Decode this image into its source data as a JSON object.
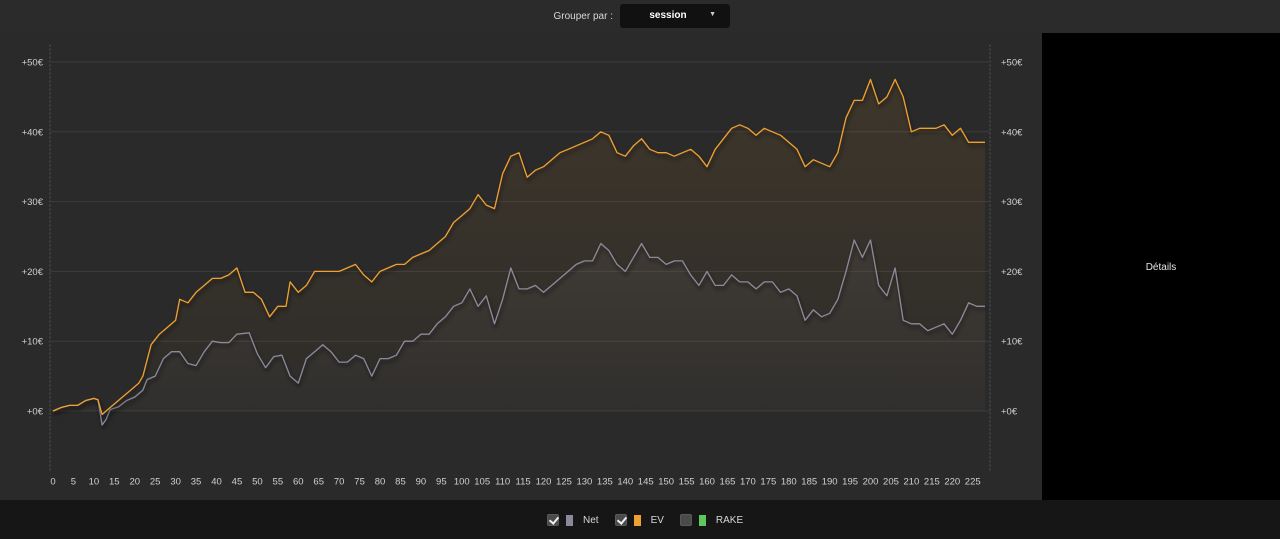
{
  "group_by": {
    "label": "Grouper par :",
    "selected": "session"
  },
  "details": {
    "label": "Détails"
  },
  "legend": [
    {
      "label": "Net",
      "checked": true,
      "color": "#8a8a9a"
    },
    {
      "label": "EV",
      "checked": true,
      "color": "#f0a030"
    },
    {
      "label": "RAKE",
      "checked": false,
      "color": "#5cc85c"
    }
  ],
  "chart_data": {
    "type": "line",
    "title": "",
    "xlabel": "",
    "ylabel": "",
    "xlim": [
      0,
      228
    ],
    "ylim": [
      -6.8,
      52.5
    ],
    "x_ticks": [
      0,
      5,
      10,
      15,
      20,
      25,
      30,
      35,
      40,
      45,
      50,
      55,
      60,
      65,
      70,
      75,
      80,
      85,
      90,
      95,
      100,
      105,
      110,
      115,
      120,
      125,
      130,
      135,
      140,
      145,
      150,
      155,
      160,
      165,
      170,
      175,
      180,
      185,
      190,
      195,
      200,
      205,
      210,
      215,
      220,
      225
    ],
    "y_ticks": [
      0,
      10,
      20,
      30,
      40,
      50
    ],
    "y_tick_labels": [
      "+0€",
      "+10€",
      "+20€",
      "+30€",
      "+40€",
      "+50€"
    ],
    "grid": true,
    "series": [
      {
        "name": "Net",
        "color": "#8a8a9a",
        "points": [
          [
            0,
            0
          ],
          [
            2,
            0.5
          ],
          [
            4,
            0.8
          ],
          [
            6,
            0.8
          ],
          [
            8,
            1.5
          ],
          [
            10,
            1.8
          ],
          [
            11,
            1.6
          ],
          [
            12,
            -2
          ],
          [
            13,
            -1.2
          ],
          [
            14,
            0.2
          ],
          [
            16,
            0.6
          ],
          [
            18,
            1.5
          ],
          [
            20,
            2
          ],
          [
            22,
            3
          ],
          [
            23,
            4.5
          ],
          [
            25,
            5
          ],
          [
            27,
            7.5
          ],
          [
            29,
            8.5
          ],
          [
            31,
            8.5
          ],
          [
            33,
            6.8
          ],
          [
            35,
            6.5
          ],
          [
            37,
            8.5
          ],
          [
            39,
            10
          ],
          [
            41,
            9.8
          ],
          [
            43,
            9.8
          ],
          [
            45,
            11
          ],
          [
            48,
            11.2
          ],
          [
            50,
            8.2
          ],
          [
            52,
            6.2
          ],
          [
            54,
            7.8
          ],
          [
            56,
            8
          ],
          [
            58,
            5
          ],
          [
            60,
            4
          ],
          [
            62,
            7.5
          ],
          [
            64,
            8.5
          ],
          [
            66,
            9.5
          ],
          [
            68,
            8.5
          ],
          [
            70,
            7
          ],
          [
            72,
            7
          ],
          [
            74,
            8
          ],
          [
            76,
            7.5
          ],
          [
            78,
            5
          ],
          [
            80,
            7.5
          ],
          [
            82,
            7.5
          ],
          [
            84,
            8
          ],
          [
            86,
            10
          ],
          [
            88,
            10
          ],
          [
            90,
            11
          ],
          [
            92,
            11
          ],
          [
            94,
            12.5
          ],
          [
            96,
            13.5
          ],
          [
            98,
            15
          ],
          [
            100,
            15.5
          ],
          [
            102,
            17.5
          ],
          [
            104,
            15
          ],
          [
            106,
            16.5
          ],
          [
            108,
            12.5
          ],
          [
            110,
            16
          ],
          [
            112,
            20.5
          ],
          [
            114,
            17.5
          ],
          [
            116,
            17.5
          ],
          [
            118,
            18
          ],
          [
            120,
            17
          ],
          [
            122,
            18
          ],
          [
            124,
            19
          ],
          [
            126,
            20
          ],
          [
            128,
            21
          ],
          [
            130,
            21.5
          ],
          [
            132,
            21.5
          ],
          [
            134,
            24
          ],
          [
            136,
            23
          ],
          [
            138,
            21
          ],
          [
            140,
            20
          ],
          [
            142,
            22
          ],
          [
            144,
            24
          ],
          [
            146,
            22
          ],
          [
            148,
            22
          ],
          [
            150,
            21
          ],
          [
            152,
            21.5
          ],
          [
            154,
            21.5
          ],
          [
            156,
            19.5
          ],
          [
            158,
            18
          ],
          [
            160,
            20
          ],
          [
            162,
            18
          ],
          [
            164,
            18
          ],
          [
            166,
            19.5
          ],
          [
            168,
            18.5
          ],
          [
            170,
            18.5
          ],
          [
            172,
            17.5
          ],
          [
            174,
            18.5
          ],
          [
            176,
            18.5
          ],
          [
            178,
            17
          ],
          [
            180,
            17.5
          ],
          [
            182,
            16.5
          ],
          [
            184,
            13
          ],
          [
            186,
            14.5
          ],
          [
            188,
            13.5
          ],
          [
            190,
            14
          ],
          [
            192,
            16
          ],
          [
            194,
            20
          ],
          [
            196,
            24.5
          ],
          [
            198,
            22
          ],
          [
            200,
            24.5
          ],
          [
            202,
            18
          ],
          [
            204,
            16.5
          ],
          [
            206,
            20.5
          ],
          [
            208,
            13
          ],
          [
            210,
            12.5
          ],
          [
            212,
            12.5
          ],
          [
            214,
            11.5
          ],
          [
            216,
            12
          ],
          [
            218,
            12.5
          ],
          [
            220,
            11
          ],
          [
            222,
            13
          ],
          [
            224,
            15.5
          ],
          [
            226,
            15
          ],
          [
            228,
            15
          ]
        ]
      },
      {
        "name": "EV",
        "color": "#f0a030",
        "points": [
          [
            0,
            0
          ],
          [
            2,
            0.5
          ],
          [
            4,
            0.8
          ],
          [
            6,
            0.8
          ],
          [
            8,
            1.5
          ],
          [
            10,
            1.8
          ],
          [
            11,
            1.6
          ],
          [
            12,
            -0.5
          ],
          [
            13,
            0
          ],
          [
            15,
            1
          ],
          [
            17,
            2
          ],
          [
            19,
            3
          ],
          [
            21,
            4
          ],
          [
            22,
            5
          ],
          [
            24,
            9.5
          ],
          [
            26,
            11
          ],
          [
            28,
            12
          ],
          [
            30,
            13
          ],
          [
            31,
            16
          ],
          [
            33,
            15.5
          ],
          [
            35,
            17
          ],
          [
            37,
            18
          ],
          [
            39,
            19
          ],
          [
            41,
            19
          ],
          [
            43,
            19.5
          ],
          [
            45,
            20.5
          ],
          [
            47,
            17
          ],
          [
            49,
            17
          ],
          [
            51,
            16
          ],
          [
            53,
            13.5
          ],
          [
            55,
            15
          ],
          [
            57,
            15
          ],
          [
            58,
            18.5
          ],
          [
            60,
            17
          ],
          [
            62,
            18
          ],
          [
            64,
            20
          ],
          [
            66,
            20
          ],
          [
            68,
            20
          ],
          [
            70,
            20
          ],
          [
            72,
            20.5
          ],
          [
            74,
            21
          ],
          [
            76,
            19.5
          ],
          [
            78,
            18.5
          ],
          [
            80,
            20
          ],
          [
            82,
            20.5
          ],
          [
            84,
            21
          ],
          [
            86,
            21
          ],
          [
            88,
            22
          ],
          [
            90,
            22.5
          ],
          [
            92,
            23
          ],
          [
            94,
            24
          ],
          [
            96,
            25
          ],
          [
            98,
            27
          ],
          [
            100,
            28
          ],
          [
            102,
            29
          ],
          [
            104,
            31
          ],
          [
            106,
            29.5
          ],
          [
            108,
            29
          ],
          [
            110,
            34
          ],
          [
            112,
            36.5
          ],
          [
            114,
            37
          ],
          [
            116,
            33.5
          ],
          [
            118,
            34.5
          ],
          [
            120,
            35
          ],
          [
            122,
            36
          ],
          [
            124,
            37
          ],
          [
            126,
            37.5
          ],
          [
            128,
            38
          ],
          [
            130,
            38.5
          ],
          [
            132,
            39
          ],
          [
            134,
            40
          ],
          [
            136,
            39.5
          ],
          [
            138,
            37
          ],
          [
            140,
            36.5
          ],
          [
            142,
            38
          ],
          [
            144,
            39
          ],
          [
            146,
            37.5
          ],
          [
            148,
            37
          ],
          [
            150,
            37
          ],
          [
            152,
            36.5
          ],
          [
            154,
            37
          ],
          [
            156,
            37.5
          ],
          [
            158,
            36.5
          ],
          [
            160,
            35
          ],
          [
            162,
            37.5
          ],
          [
            164,
            39
          ],
          [
            166,
            40.5
          ],
          [
            168,
            41
          ],
          [
            170,
            40.5
          ],
          [
            172,
            39.5
          ],
          [
            174,
            40.5
          ],
          [
            176,
            40
          ],
          [
            178,
            39.5
          ],
          [
            180,
            38.5
          ],
          [
            182,
            37.5
          ],
          [
            184,
            35
          ],
          [
            186,
            36
          ],
          [
            188,
            35.5
          ],
          [
            190,
            35
          ],
          [
            192,
            37
          ],
          [
            194,
            42
          ],
          [
            196,
            44.5
          ],
          [
            198,
            44.5
          ],
          [
            200,
            47.5
          ],
          [
            202,
            44
          ],
          [
            204,
            45
          ],
          [
            206,
            47.5
          ],
          [
            208,
            45
          ],
          [
            210,
            40
          ],
          [
            212,
            40.5
          ],
          [
            214,
            40.5
          ],
          [
            216,
            40.5
          ],
          [
            218,
            41
          ],
          [
            220,
            39.5
          ],
          [
            222,
            40.5
          ],
          [
            224,
            38.5
          ],
          [
            226,
            38.5
          ],
          [
            228,
            38.5
          ]
        ]
      }
    ]
  }
}
